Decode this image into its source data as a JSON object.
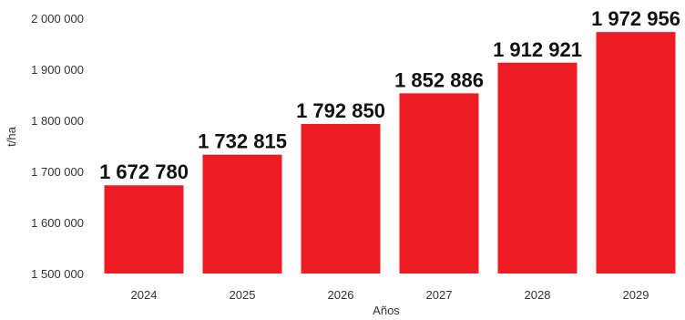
{
  "chart_data": {
    "type": "bar",
    "categories": [
      "2024",
      "2025",
      "2026",
      "2027",
      "2028",
      "2029"
    ],
    "values": [
      1672780,
      1732815,
      1792850,
      1852886,
      1912921,
      1972956
    ],
    "data_labels": [
      "1 672 780",
      "1 732 815",
      "1 792 850",
      "1 852 886",
      "1 912 921",
      "1 972 956"
    ],
    "title": "",
    "xlabel": "Años",
    "ylabel": "t/ha",
    "ylim": [
      1500000,
      2000000
    ],
    "yticks": [
      1500000,
      1600000,
      1700000,
      1800000,
      1900000,
      2000000
    ],
    "ytick_labels": [
      "1 500 000",
      "1 600 000",
      "1 700 000",
      "1 800 000",
      "1 900 000",
      "2 000 000"
    ],
    "grid": false,
    "legend": "none",
    "bar_color": "#ed1c24"
  }
}
